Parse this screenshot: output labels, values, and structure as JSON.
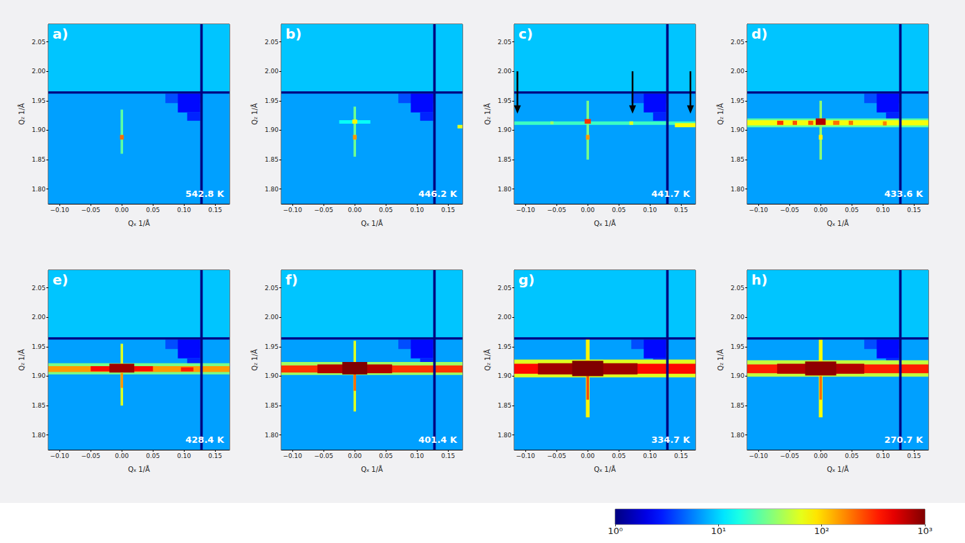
{
  "chart_data": {
    "type": "heatmap",
    "x_label": "Qx 1/Å",
    "y_label": "Qz 1/Å",
    "xlim": [
      -0.118,
      0.173
    ],
    "ylim": [
      1.775,
      2.08
    ],
    "xticks": [
      {
        "value": -0.1,
        "label": "−0.10"
      },
      {
        "value": -0.05,
        "label": "−0.05"
      },
      {
        "value": 0,
        "label": "0.00"
      },
      0.05,
      {
        "value": 0.1,
        "label": "0.10"
      },
      0.15
    ],
    "yticks": [
      {
        "value": 1.8,
        "label": "1.80"
      },
      1.85,
      {
        "value": 1.9,
        "label": "1.90"
      },
      1.95,
      {
        "value": 2.0,
        "label": "2.00"
      },
      2.05
    ],
    "colorbar": {
      "range": [
        1,
        1000
      ],
      "log": true,
      "ticks": [
        {
          "value": 1,
          "label": "10⁰"
        },
        {
          "value": 10,
          "label": "10¹"
        },
        {
          "value": 100,
          "label": "10²"
        },
        {
          "value": 1000,
          "label": "10³"
        }
      ]
    },
    "base_cells": [
      [
        -0.118,
        0.173,
        1.775,
        2.08,
        7
      ],
      [
        -0.118,
        0.173,
        1.966,
        2.08,
        9
      ],
      [
        0.07,
        0.126,
        1.946,
        1.962,
        4
      ],
      [
        0.09,
        0.126,
        1.93,
        1.962,
        2.5
      ],
      [
        0.105,
        0.126,
        1.916,
        1.93,
        3
      ]
    ],
    "gap_cells": [
      [
        0.126,
        0.13,
        1.775,
        2.08,
        1
      ],
      [
        -0.118,
        0.173,
        1.962,
        1.966,
        1
      ]
    ],
    "panels": [
      {
        "label": "a)",
        "annotation": "542.8 K",
        "cells": [
          [
            -0.002,
            0.002,
            1.86,
            1.935,
            25
          ],
          [
            -0.003,
            0.003,
            1.884,
            1.892,
            200
          ]
        ]
      },
      {
        "label": "b)",
        "annotation": "446.2 K",
        "cells": [
          [
            -0.025,
            0.025,
            1.911,
            1.917,
            14
          ],
          [
            -0.002,
            0.002,
            1.855,
            1.94,
            28
          ],
          [
            -0.003,
            0.003,
            1.884,
            1.892,
            150
          ],
          [
            -0.004,
            0.004,
            1.911,
            1.918,
            80
          ],
          [
            0.165,
            0.173,
            1.903,
            1.909,
            60
          ]
        ]
      },
      {
        "label": "c)",
        "annotation": "441.7 K",
        "cells": [
          [
            -0.118,
            0.173,
            1.909,
            1.915,
            20
          ],
          [
            0.14,
            0.173,
            1.905,
            1.912,
            70
          ],
          [
            -0.06,
            -0.055,
            1.91,
            1.915,
            40
          ],
          [
            0.067,
            0.073,
            1.909,
            1.915,
            60
          ],
          [
            -0.002,
            0.002,
            1.85,
            1.95,
            30
          ],
          [
            -0.005,
            0.005,
            1.911,
            1.919,
            300
          ],
          [
            -0.003,
            0.003,
            1.884,
            1.892,
            150
          ]
        ],
        "arrows": [
          {
            "qx": -0.113,
            "qz": [
              2.0,
              1.928
            ]
          },
          {
            "qx": 0.072,
            "qz": [
              2.0,
              1.928
            ]
          },
          {
            "qx": 0.165,
            "qz": [
              2.0,
              1.928
            ]
          }
        ]
      },
      {
        "label": "d)",
        "annotation": "433.6 K",
        "cells": [
          [
            -0.118,
            0.173,
            1.905,
            1.92,
            25
          ],
          [
            -0.118,
            0.173,
            1.908,
            1.917,
            70
          ],
          [
            -0.07,
            -0.06,
            1.909,
            1.916,
            300
          ],
          [
            -0.045,
            -0.038,
            1.909,
            1.916,
            250
          ],
          [
            -0.02,
            -0.012,
            1.909,
            1.916,
            250
          ],
          [
            0.02,
            0.03,
            1.909,
            1.916,
            200
          ],
          [
            0.045,
            0.052,
            1.909,
            1.916,
            200
          ],
          [
            0.1,
            0.106,
            1.908,
            1.915,
            180
          ],
          [
            -0.002,
            0.002,
            1.85,
            1.95,
            35
          ],
          [
            -0.003,
            0.003,
            1.884,
            1.892,
            80
          ],
          [
            -0.008,
            0.008,
            1.909,
            1.92,
            700
          ]
        ]
      },
      {
        "label": "e)",
        "annotation": "428.4 K",
        "cells": [
          [
            -0.118,
            0.173,
            1.903,
            1.922,
            30
          ],
          [
            -0.118,
            0.173,
            1.907,
            1.917,
            150
          ],
          [
            -0.05,
            0.05,
            1.908,
            1.917,
            400
          ],
          [
            0.095,
            0.115,
            1.908,
            1.915,
            350
          ],
          [
            -0.002,
            0.002,
            1.85,
            1.955,
            60
          ],
          [
            -0.002,
            0.002,
            1.88,
            1.905,
            150
          ],
          [
            -0.02,
            0.02,
            1.906,
            1.921,
            800
          ]
        ]
      },
      {
        "label": "f)",
        "annotation": "401.4 K",
        "cells": [
          [
            -0.118,
            0.173,
            1.902,
            1.924,
            40
          ],
          [
            -0.118,
            0.173,
            1.906,
            1.918,
            300
          ],
          [
            -0.06,
            0.06,
            1.905,
            1.92,
            700
          ],
          [
            -0.002,
            0.002,
            1.84,
            1.96,
            60
          ],
          [
            -0.002,
            0.002,
            1.875,
            1.905,
            200
          ],
          [
            -0.02,
            0.02,
            1.903,
            1.924,
            1000
          ]
        ]
      },
      {
        "label": "g)",
        "annotation": "334.7 K",
        "cells": [
          [
            -0.118,
            0.173,
            1.898,
            1.928,
            60
          ],
          [
            -0.118,
            0.173,
            1.904,
            1.921,
            400
          ],
          [
            -0.08,
            0.08,
            1.903,
            1.922,
            800
          ],
          [
            -0.003,
            0.003,
            1.83,
            1.965,
            80
          ],
          [
            -0.002,
            0.002,
            1.86,
            1.9,
            250
          ],
          [
            -0.025,
            0.025,
            1.9,
            1.926,
            1000
          ]
        ]
      },
      {
        "label": "h)",
        "annotation": "270.7 K",
        "cells": [
          [
            -0.118,
            0.173,
            1.899,
            1.927,
            50
          ],
          [
            -0.118,
            0.173,
            1.905,
            1.92,
            350
          ],
          [
            -0.07,
            0.07,
            1.904,
            1.921,
            700
          ],
          [
            -0.003,
            0.003,
            1.83,
            1.962,
            70
          ],
          [
            -0.002,
            0.002,
            1.86,
            1.9,
            200
          ],
          [
            -0.025,
            0.025,
            1.901,
            1.925,
            900
          ]
        ]
      }
    ]
  }
}
